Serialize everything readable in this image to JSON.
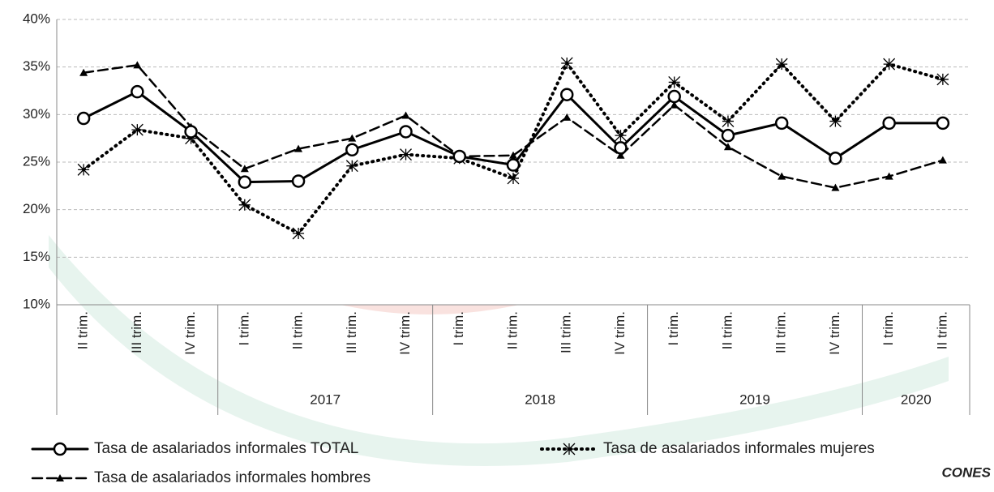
{
  "chart_data": {
    "type": "line",
    "categories": [
      "II trim.",
      "III trim.",
      "IV trim.",
      "I trim.",
      "II trim.",
      "III trim.",
      "IV trim.",
      "I trim.",
      "II trim.",
      "III trim.",
      "IV trim.",
      "I trim.",
      "II trim.",
      "III trim.",
      "IV trim.",
      "I trim.",
      "II trim."
    ],
    "years": [
      null,
      null,
      null,
      "2017",
      "2017",
      "2017",
      "2017",
      "2018",
      "2018",
      "2018",
      "2018",
      "2019",
      "2019",
      "2019",
      "2019",
      "2020",
      "2020"
    ],
    "series": [
      {
        "name": "Tasa de asalariados informales TOTAL",
        "color": "#000000",
        "style": "solid",
        "marker": "circle",
        "values": [
          29.6,
          32.4,
          28.2,
          22.9,
          23.0,
          26.3,
          28.2,
          25.6,
          24.7,
          32.1,
          26.5,
          31.9,
          27.8,
          29.1,
          25.4,
          29.1,
          29.1
        ]
      },
      {
        "name": "Tasa de asalariados informales mujeres",
        "color": "#000000",
        "style": "dotted",
        "marker": "asterisk",
        "values": [
          24.2,
          28.4,
          27.5,
          20.5,
          17.5,
          24.6,
          25.8,
          25.4,
          23.3,
          35.4,
          27.8,
          33.4,
          29.3,
          35.3,
          29.3,
          35.3,
          33.7
        ]
      },
      {
        "name": "Tasa de asalariados informales hombres",
        "color": "#000000",
        "style": "dashed",
        "marker": "triangle",
        "values": [
          34.4,
          35.2,
          28.7,
          24.3,
          26.4,
          27.5,
          29.9,
          25.6,
          25.7,
          29.7,
          25.7,
          31.0,
          26.6,
          23.5,
          22.3,
          23.5,
          25.2
        ]
      }
    ],
    "ylim": [
      10,
      40
    ],
    "yticks": [
      {
        "value": 10,
        "label": "10%"
      },
      {
        "value": 15,
        "label": "15%"
      },
      {
        "value": 20,
        "label": "20%"
      },
      {
        "value": 25,
        "label": "25%"
      },
      {
        "value": 30,
        "label": "30%"
      },
      {
        "value": 35,
        "label": "35%"
      },
      {
        "value": 40,
        "label": "40%"
      }
    ],
    "grid": true,
    "watermark": "CONES"
  }
}
